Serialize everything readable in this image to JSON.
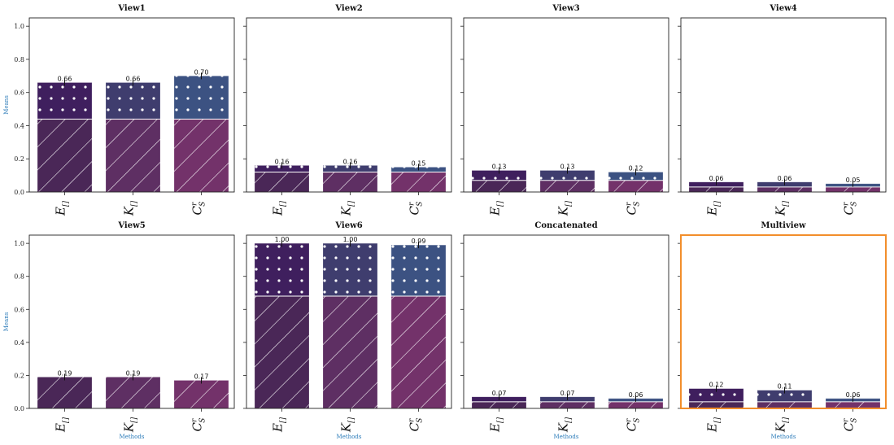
{
  "figure": {
    "ylabel": "Means",
    "xlabel": "Methods",
    "highlight_color": "#f28e2b",
    "palette": {
      "upper": [
        "#3f1f5e",
        "#3f3d6e",
        "#3c5282"
      ],
      "lower": [
        "#4a2757",
        "#5e2f63",
        "#73326a"
      ]
    }
  },
  "chart_data": [
    {
      "type": "bar",
      "title": "View1",
      "categories": [
        "E",
        "K",
        "C"
      ],
      "values": [
        0.66,
        0.66,
        0.7
      ],
      "lower_values": [
        0.44,
        0.44,
        0.44
      ],
      "labels": [
        "0.66",
        "0.66",
        "0.70"
      ],
      "ylim": [
        0,
        1.05
      ],
      "yticks": [
        "0.0",
        "0.2",
        "0.4",
        "0.6",
        "0.8",
        "1.0"
      ],
      "highlight": false
    },
    {
      "type": "bar",
      "title": "View2",
      "categories": [
        "E",
        "K",
        "C"
      ],
      "values": [
        0.16,
        0.16,
        0.15
      ],
      "lower_values": [
        0.12,
        0.12,
        0.12
      ],
      "labels": [
        "0.16",
        "0.16",
        "0.15"
      ],
      "ylim": [
        0,
        1.05
      ],
      "highlight": false
    },
    {
      "type": "bar",
      "title": "View3",
      "categories": [
        "E",
        "K",
        "C"
      ],
      "values": [
        0.13,
        0.13,
        0.12
      ],
      "lower_values": [
        0.07,
        0.07,
        0.07
      ],
      "labels": [
        "0.13",
        "0.13",
        "0.12"
      ],
      "ylim": [
        0,
        1.05
      ],
      "highlight": false
    },
    {
      "type": "bar",
      "title": "View4",
      "categories": [
        "E",
        "K",
        "C"
      ],
      "values": [
        0.06,
        0.06,
        0.05
      ],
      "lower_values": [
        0.03,
        0.03,
        0.03
      ],
      "labels": [
        "0.06",
        "0.06",
        "0.05"
      ],
      "ylim": [
        0,
        1.05
      ],
      "highlight": false
    },
    {
      "type": "bar",
      "title": "View5",
      "categories": [
        "E",
        "K",
        "C"
      ],
      "values": [
        0.19,
        0.19,
        0.17
      ],
      "lower_values": [
        0.19,
        0.19,
        0.19
      ],
      "labels": [
        "0.19",
        "0.19",
        "0.17"
      ],
      "ylim": [
        0,
        1.05
      ],
      "yticks": [
        "0.0",
        "0.2",
        "0.4",
        "0.6",
        "0.8",
        "1.0"
      ],
      "highlight": false
    },
    {
      "type": "bar",
      "title": "View6",
      "categories": [
        "E",
        "K",
        "C"
      ],
      "values": [
        1.0,
        1.0,
        0.99
      ],
      "lower_values": [
        0.68,
        0.68,
        0.68
      ],
      "labels": [
        "1.00",
        "1.00",
        "0.99"
      ],
      "ylim": [
        0,
        1.05
      ],
      "highlight": false
    },
    {
      "type": "bar",
      "title": "Concatenated",
      "categories": [
        "E",
        "K",
        "C"
      ],
      "values": [
        0.07,
        0.07,
        0.06
      ],
      "lower_values": [
        0.04,
        0.04,
        0.04
      ],
      "labels": [
        "0.07",
        "0.07",
        "0.06"
      ],
      "ylim": [
        0,
        1.05
      ],
      "highlight": false
    },
    {
      "type": "bar",
      "title": "Multiview",
      "categories": [
        "E",
        "K",
        "C"
      ],
      "values": [
        0.12,
        0.11,
        0.06
      ],
      "lower_values": [
        0.04,
        0.04,
        0.04
      ],
      "labels": [
        "0.12",
        "0.11",
        "0.06"
      ],
      "ylim": [
        0,
        1.05
      ],
      "highlight": true
    }
  ]
}
